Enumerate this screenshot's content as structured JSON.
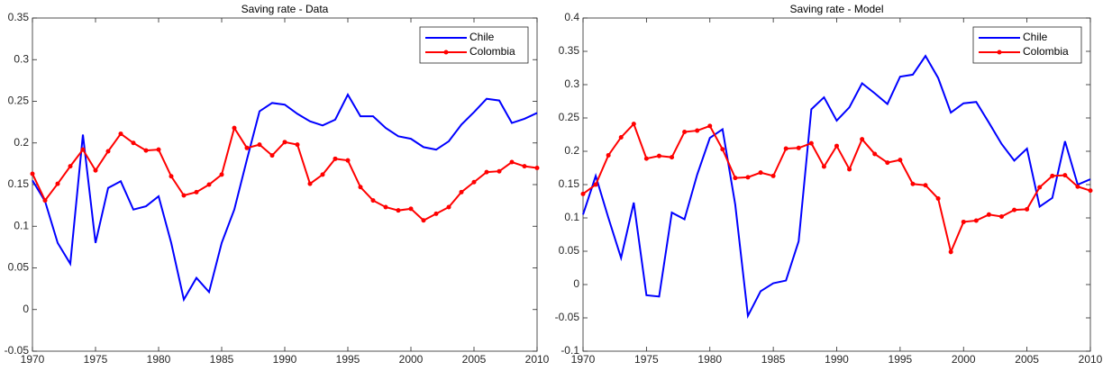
{
  "chart_data": [
    {
      "type": "line",
      "title": "Saving rate - Data",
      "x": [
        1970,
        1971,
        1972,
        1973,
        1974,
        1975,
        1976,
        1977,
        1978,
        1979,
        1980,
        1981,
        1982,
        1983,
        1984,
        1985,
        1986,
        1987,
        1988,
        1989,
        1990,
        1991,
        1992,
        1993,
        1994,
        1995,
        1996,
        1997,
        1998,
        1999,
        2000,
        2001,
        2002,
        2003,
        2004,
        2005,
        2006,
        2007,
        2008,
        2009,
        2010
      ],
      "xlim": [
        1970,
        2010
      ],
      "xticks": [
        1970,
        1975,
        1980,
        1985,
        1990,
        1995,
        2000,
        2005,
        2010
      ],
      "ylim": [
        -0.05,
        0.35
      ],
      "yticks": [
        -0.05,
        0,
        0.05,
        0.1,
        0.15,
        0.2,
        0.25,
        0.3,
        0.35
      ],
      "legend": "upper right",
      "series": [
        {
          "name": "Chile",
          "color": "#0000ff",
          "values": [
            0.155,
            0.13,
            0.08,
            0.055,
            0.21,
            0.08,
            0.146,
            0.154,
            0.12,
            0.124,
            0.136,
            0.08,
            0.012,
            0.038,
            0.021,
            0.08,
            0.12,
            0.18,
            0.238,
            0.248,
            0.246,
            0.235,
            0.226,
            0.221,
            0.228,
            0.258,
            0.232,
            0.232,
            0.218,
            0.208,
            0.205,
            0.195,
            0.192,
            0.202,
            0.222,
            0.237,
            0.253,
            0.251,
            0.224,
            0.229,
            0.236
          ]
        },
        {
          "name": "Colombia",
          "color": "#ff0000",
          "marker": "o",
          "values": [
            0.163,
            0.131,
            0.151,
            0.172,
            0.192,
            0.167,
            0.19,
            0.211,
            0.2,
            0.191,
            0.192,
            0.16,
            0.137,
            0.141,
            0.15,
            0.162,
            0.218,
            0.194,
            0.198,
            0.185,
            0.201,
            0.198,
            0.151,
            0.162,
            0.181,
            0.179,
            0.147,
            0.131,
            0.123,
            0.119,
            0.121,
            0.107,
            0.115,
            0.123,
            0.141,
            0.153,
            0.165,
            0.166,
            0.177,
            0.172,
            0.17
          ]
        }
      ]
    },
    {
      "type": "line",
      "title": "Saving rate - Model",
      "x": [
        1970,
        1971,
        1972,
        1973,
        1974,
        1975,
        1976,
        1977,
        1978,
        1979,
        1980,
        1981,
        1982,
        1983,
        1984,
        1985,
        1986,
        1987,
        1988,
        1989,
        1990,
        1991,
        1992,
        1993,
        1994,
        1995,
        1996,
        1997,
        1998,
        1999,
        2000,
        2001,
        2002,
        2003,
        2004,
        2005,
        2006,
        2007,
        2008,
        2009,
        2010
      ],
      "xlim": [
        1970,
        2010
      ],
      "xticks": [
        1970,
        1975,
        1980,
        1985,
        1990,
        1995,
        2000,
        2005,
        2010
      ],
      "ylim": [
        -0.1,
        0.4
      ],
      "yticks": [
        -0.1,
        -0.05,
        0,
        0.05,
        0.1,
        0.15,
        0.2,
        0.25,
        0.3,
        0.35,
        0.4
      ],
      "legend": "upper right",
      "series": [
        {
          "name": "Chile",
          "color": "#0000ff",
          "values": [
            0.105,
            0.163,
            0.1,
            0.04,
            0.123,
            -0.016,
            -0.018,
            0.108,
            0.098,
            0.165,
            0.22,
            0.233,
            0.12,
            -0.047,
            -0.01,
            0.002,
            0.006,
            0.065,
            0.263,
            0.281,
            0.246,
            0.266,
            0.302,
            0.287,
            0.271,
            0.312,
            0.315,
            0.343,
            0.31,
            0.258,
            0.272,
            0.274,
            0.243,
            0.211,
            0.186,
            0.204,
            0.117,
            0.13,
            0.215,
            0.15,
            0.158
          ]
        },
        {
          "name": "Colombia",
          "color": "#ff0000",
          "marker": "o",
          "values": [
            0.136,
            0.15,
            0.194,
            0.221,
            0.241,
            0.189,
            0.193,
            0.191,
            0.229,
            0.231,
            0.238,
            0.203,
            0.16,
            0.161,
            0.168,
            0.163,
            0.204,
            0.205,
            0.212,
            0.177,
            0.208,
            0.173,
            0.218,
            0.196,
            0.183,
            0.187,
            0.151,
            0.149,
            0.129,
            0.049,
            0.094,
            0.096,
            0.105,
            0.102,
            0.112,
            0.113,
            0.146,
            0.163,
            0.164,
            0.147,
            0.141
          ]
        }
      ]
    }
  ]
}
